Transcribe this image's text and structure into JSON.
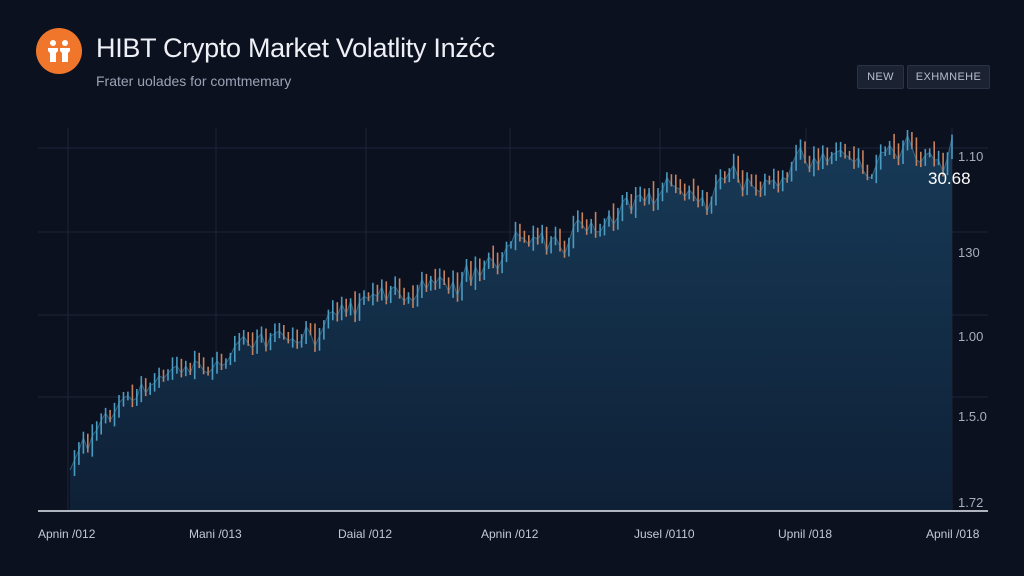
{
  "header": {
    "title": "HIBT Crypto Market Volatlity Inżćc",
    "subtitle": "Frater uolades for comtmemary",
    "logo_icon": "twin-figures-icon",
    "logo_color": "#f0762c"
  },
  "toolbar": {
    "new_label": "NEW",
    "exchange_label": "EXHMNEHE"
  },
  "chart_data": {
    "type": "line",
    "title": "HIBT Crypto Market Volatlity Inżćc",
    "subtitle": "Frater uolades for comtmemary",
    "x_tick_labels": [
      "Apnin /012",
      "Mani /013",
      "Daial /012",
      "Apnin /012",
      "Jusel /0110",
      "Upnil /018",
      "Apnil /018"
    ],
    "y_tick_labels": [
      "1.10",
      "130",
      "1.00",
      "1.5.0",
      "1.72"
    ],
    "callout_value": "30.68",
    "grid": true,
    "colors": {
      "line_up": "#4c9bc0",
      "line_down": "#c7825f",
      "fill_top": "#173a57",
      "fill_bottom": "#0e2036",
      "grid": "#1c2538",
      "baseline": "#e6ebf2"
    },
    "series": [
      {
        "values": [
          0,
          4,
          4,
          5,
          -5,
          6,
          2,
          4,
          3,
          -3,
          3,
          4,
          2,
          1,
          -2,
          1,
          6,
          -4,
          3,
          1,
          3,
          -1,
          2,
          2,
          1,
          -3,
          3,
          -3,
          5,
          -1,
          -3,
          -1,
          2,
          3,
          -2,
          1,
          3,
          4,
          2,
          2,
          -3,
          -2,
          4,
          2,
          -6,
          5,
          1,
          1,
          -2,
          -2,
          1,
          -2,
          1,
          6,
          -3,
          -5,
          4,
          4,
          5,
          1,
          -2,
          5,
          -4,
          5,
          -6,
          6,
          2,
          -1,
          2,
          -1,
          4,
          -6,
          5,
          1,
          -3,
          -3,
          2,
          -2,
          3,
          6,
          -4,
          4,
          -2,
          3,
          -2,
          -4,
          4,
          -6,
          7,
          6,
          -8,
          7,
          -4,
          4,
          4,
          -2,
          -3,
          4,
          5,
          1,
          5,
          -2,
          -1,
          -2,
          3,
          -1,
          3,
          -8,
          5,
          1,
          -4,
          -3,
          5,
          6,
          3,
          -2,
          -3,
          4,
          -4,
          0,
          3,
          4,
          -4,
          3,
          6,
          2,
          -6,
          6,
          1,
          -3,
          4,
          -5,
          3,
          3,
          5,
          -3,
          -1,
          -1,
          -3,
          3,
          -2,
          -3,
          2,
          -6,
          5,
          6,
          3,
          -1,
          3,
          3,
          -5,
          -6,
          6,
          -3,
          -2,
          -1,
          5,
          -1,
          1,
          -3,
          4,
          -1,
          6,
          4,
          3,
          -5,
          -4,
          5,
          -3,
          5,
          -4,
          3,
          1,
          1,
          -2,
          -1,
          -2,
          2,
          -5,
          -3,
          0,
          5,
          5,
          0,
          3,
          -3,
          -3,
          5,
          5,
          -5,
          -5,
          -1,
          3,
          1,
          -3,
          0,
          -5,
          6,
          8
        ]
      }
    ]
  }
}
